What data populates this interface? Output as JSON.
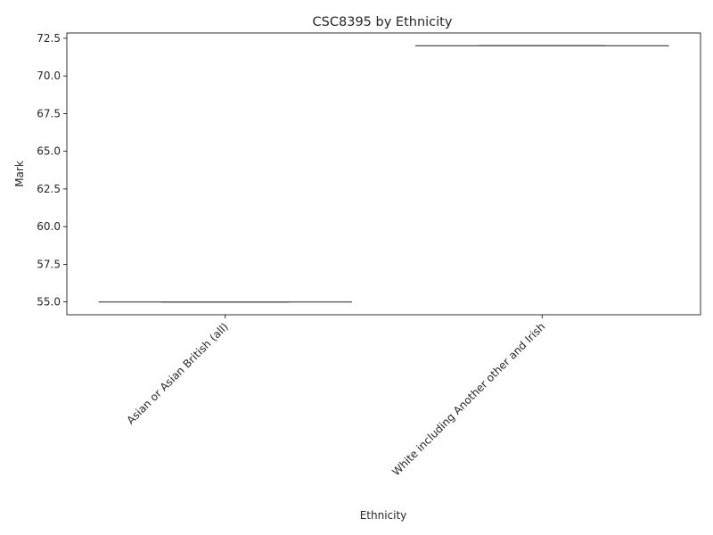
{
  "chart_data": {
    "type": "box",
    "title": "CSC8395 by Ethnicity",
    "xlabel": "Ethnicity",
    "ylabel": "Mark",
    "categories": [
      "Asian or Asian British (all)",
      "White including Another other and Irish"
    ],
    "series": [
      {
        "values": [
          {
            "category": "Asian or Asian British (all)",
            "min": 55,
            "q1": 55,
            "median": 55,
            "q3": 55,
            "max": 55
          },
          {
            "category": "White including Another other and Irish",
            "min": 72,
            "q1": 72,
            "median": 72,
            "q3": 72,
            "max": 72
          }
        ]
      }
    ],
    "ylim": [
      54.15,
      72.85
    ],
    "yticks": [
      55.0,
      57.5,
      60.0,
      62.5,
      65.0,
      67.5,
      70.0,
      72.5
    ],
    "ytick_labels": [
      "55.0",
      "57.5",
      "60.0",
      "62.5",
      "65.0",
      "67.5",
      "70.0",
      "72.5"
    ],
    "grid": false,
    "xtick_rotation": 45,
    "colors": {
      "box": "#4d4d4d",
      "axis": "#000000",
      "text": "#262626"
    }
  }
}
